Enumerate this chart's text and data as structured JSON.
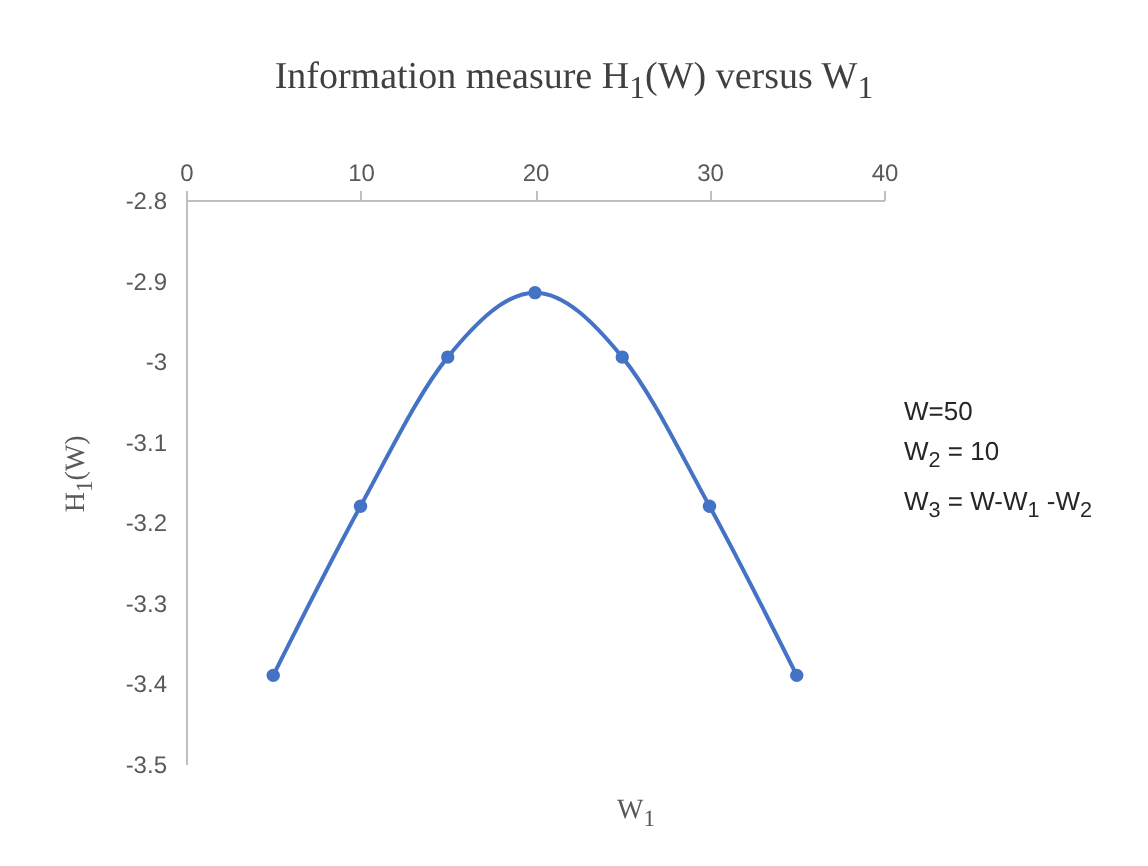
{
  "chart_data": {
    "type": "line",
    "title": "Information measure H$_{1}$(W) versus W$_{1}$",
    "xlabel": "W$_{1}$",
    "ylabel": "H$_{1}$(W)",
    "annotations": [
      "W=50",
      "W$_{2}$ = 10",
      "W$_{3}$ = W-W$_{1}$ -W$_{2}$"
    ],
    "x": [
      5,
      10,
      15,
      20,
      25,
      30,
      35
    ],
    "series": [
      {
        "color": "#4472c4",
        "values": [
          -3.39,
          -3.18,
          -2.995,
          -2.915,
          -2.995,
          -3.18,
          -3.39
        ]
      }
    ],
    "xlim": [
      0,
      40
    ],
    "xticks": [
      0,
      10,
      20,
      30,
      40
    ],
    "ylim": [
      -3.5,
      -2.8
    ],
    "yticks": [
      -3.5,
      -3.4,
      -3.3,
      -3.2,
      -3.1,
      -3,
      -2.9,
      -2.8
    ],
    "grid": false,
    "marker": "circle"
  }
}
